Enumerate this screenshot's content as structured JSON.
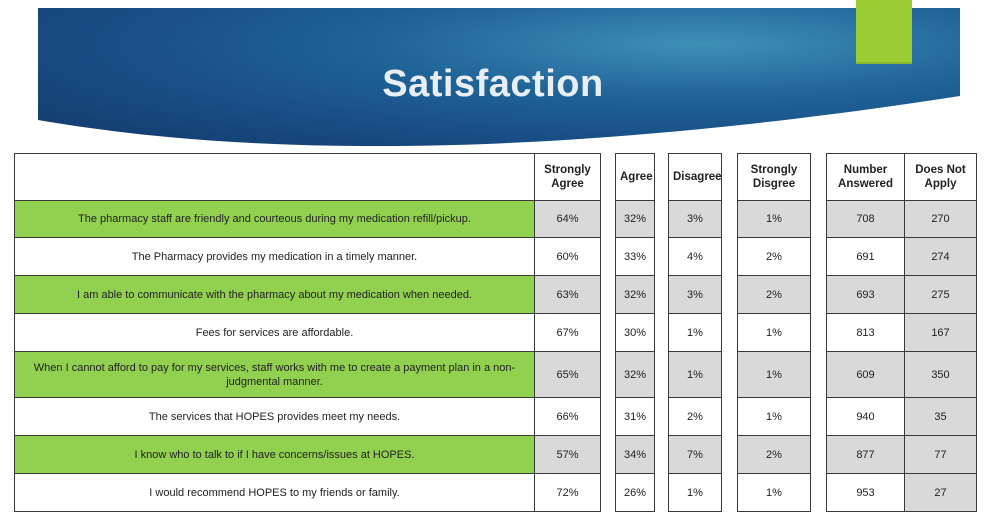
{
  "title": "Satisfaction",
  "colors": {
    "highlight": "#92d050",
    "accent": "#9acd32",
    "shaded": "#d9d9d9"
  },
  "headers": {
    "strongly_agree": "Strongly Agree",
    "agree": "Agree",
    "disagree": "Disagree",
    "strongly_disagree": "Strongly Disgree",
    "number_answered": "Number Answered",
    "does_not_apply": "Does Not Apply"
  },
  "rows": [
    {
      "statement": "The pharmacy staff are friendly and courteous during my medication refill/pickup.",
      "strongly_agree": "64%",
      "agree": "32%",
      "disagree": "3%",
      "strongly_disagree": "1%",
      "number_answered": "708",
      "does_not_apply": "270"
    },
    {
      "statement": "The Pharmacy provides my medication in a timely manner.",
      "strongly_agree": "60%",
      "agree": "33%",
      "disagree": "4%",
      "strongly_disagree": "2%",
      "number_answered": "691",
      "does_not_apply": "274"
    },
    {
      "statement": "I am able to communicate with the pharmacy about my medication when needed.",
      "strongly_agree": "63%",
      "agree": "32%",
      "disagree": "3%",
      "strongly_disagree": "2%",
      "number_answered": "693",
      "does_not_apply": "275"
    },
    {
      "statement": "Fees for services are affordable.",
      "strongly_agree": "67%",
      "agree": "30%",
      "disagree": "1%",
      "strongly_disagree": "1%",
      "number_answered": "813",
      "does_not_apply": "167"
    },
    {
      "statement": "When I cannot afford to pay for my services, staff works with me to create a payment plan in a non-judgmental manner.",
      "strongly_agree": "65%",
      "agree": "32%",
      "disagree": "1%",
      "strongly_disagree": "1%",
      "number_answered": "609",
      "does_not_apply": "350"
    },
    {
      "statement": "The services that HOPES provides meet my needs.",
      "strongly_agree": "66%",
      "agree": "31%",
      "disagree": "2%",
      "strongly_disagree": "1%",
      "number_answered": "940",
      "does_not_apply": "35"
    },
    {
      "statement": "I know who to talk to if I have concerns/issues at HOPES.",
      "strongly_agree": "57%",
      "agree": "34%",
      "disagree": "7%",
      "strongly_disagree": "2%",
      "number_answered": "877",
      "does_not_apply": "77"
    },
    {
      "statement": "I would recommend HOPES to my friends or family.",
      "strongly_agree": "72%",
      "agree": "26%",
      "disagree": "1%",
      "strongly_disagree": "1%",
      "number_answered": "953",
      "does_not_apply": "27"
    }
  ]
}
